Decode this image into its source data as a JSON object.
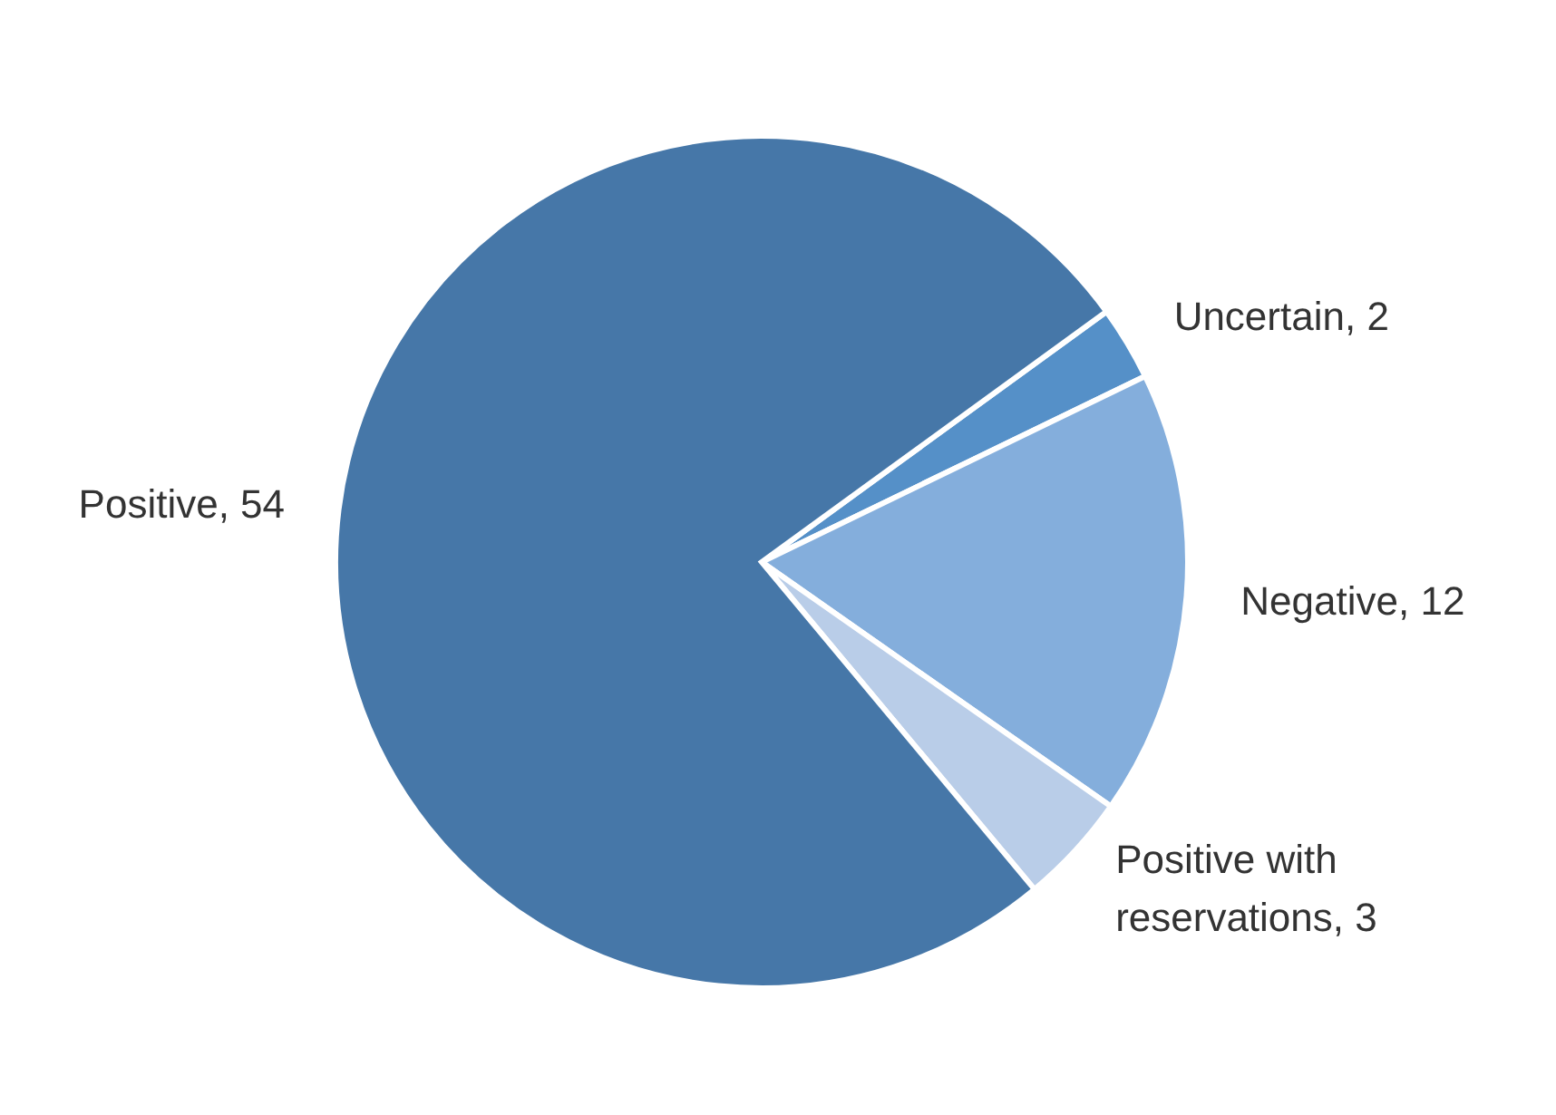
{
  "chart_data": {
    "type": "pie",
    "categories": [
      "Uncertain, 2",
      "Negative, 12",
      "Positive with reservations, 3",
      "Positive, 54"
    ],
    "values": [
      2,
      12,
      3,
      54
    ],
    "colors": [
      "#5590c8",
      "#84aedc",
      "#b9cde8",
      "#4677a8"
    ]
  }
}
